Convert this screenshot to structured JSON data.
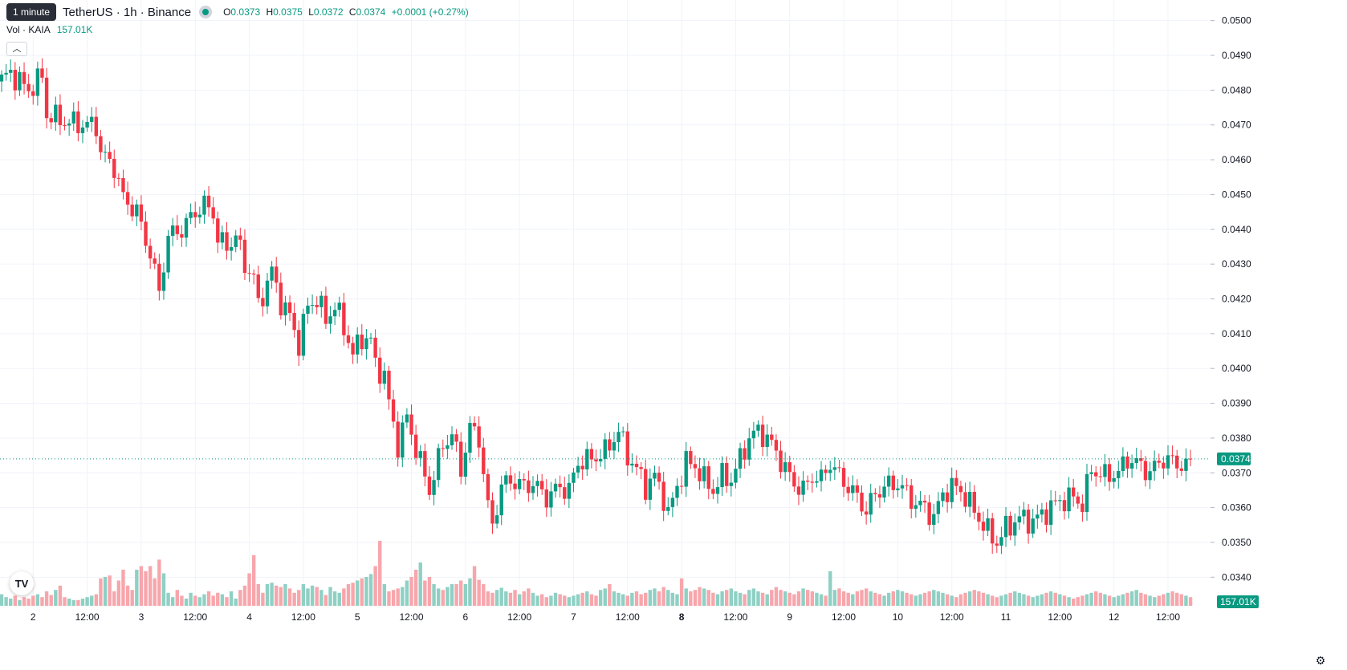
{
  "header": {
    "tooltip": "1 minute",
    "title": "TetherUS · 1h · Binance",
    "ohlc": [
      {
        "key": "O",
        "value": "0.0373"
      },
      {
        "key": "H",
        "value": "0.0375"
      },
      {
        "key": "L",
        "value": "0.0372"
      },
      {
        "key": "C",
        "value": "0.0374"
      }
    ],
    "change": "+0.0001 (+0.27%)"
  },
  "volume_legend": {
    "label": "Vol · KAIA",
    "value": "157.01K"
  },
  "logo_text": "TV",
  "colors": {
    "up": "#089981",
    "down": "#f23645",
    "vol_up": "#8fd0c4",
    "vol_down": "#f7a6ac",
    "grid": "#f0f3fa",
    "text": "#131722"
  },
  "chart_data": {
    "type": "candlestick",
    "interval": "1h",
    "ylim": [
      0.0335,
      0.0505
    ],
    "yticks": [
      "0.0500",
      "0.0490",
      "0.0480",
      "0.0470",
      "0.0460",
      "0.0450",
      "0.0440",
      "0.0430",
      "0.0420",
      "0.0410",
      "0.0400",
      "0.0390",
      "0.0380",
      "0.0370",
      "0.0360",
      "0.0350",
      "0.0340"
    ],
    "xticks": [
      {
        "label": "2",
        "bar": 7,
        "bold": false
      },
      {
        "label": "12:00",
        "bar": 19,
        "bold": false
      },
      {
        "label": "3",
        "bar": 31,
        "bold": false
      },
      {
        "label": "12:00",
        "bar": 43,
        "bold": false
      },
      {
        "label": "4",
        "bar": 55,
        "bold": false
      },
      {
        "label": "12:00",
        "bar": 67,
        "bold": false
      },
      {
        "label": "5",
        "bar": 79,
        "bold": false
      },
      {
        "label": "12:00",
        "bar": 91,
        "bold": false
      },
      {
        "label": "6",
        "bar": 103,
        "bold": false
      },
      {
        "label": "12:00",
        "bar": 115,
        "bold": false
      },
      {
        "label": "7",
        "bar": 127,
        "bold": false
      },
      {
        "label": "12:00",
        "bar": 139,
        "bold": false
      },
      {
        "label": "8",
        "bar": 151,
        "bold": true
      },
      {
        "label": "12:00",
        "bar": 163,
        "bold": false
      },
      {
        "label": "9",
        "bar": 175,
        "bold": false
      },
      {
        "label": "12:00",
        "bar": 187,
        "bold": false
      },
      {
        "label": "10",
        "bar": 199,
        "bold": false
      },
      {
        "label": "12:00",
        "bar": 211,
        "bold": false
      },
      {
        "label": "11",
        "bar": 223,
        "bold": false
      },
      {
        "label": "12:00",
        "bar": 235,
        "bold": false
      },
      {
        "label": "12",
        "bar": 247,
        "bold": false
      },
      {
        "label": "12:00",
        "bar": 259,
        "bold": false
      }
    ],
    "last_price": "0.0374",
    "last_volume": "157.01K",
    "keyframes": [
      [
        0,
        0.0483
      ],
      [
        2,
        0.0485
      ],
      [
        6,
        0.048
      ],
      [
        9,
        0.0484
      ],
      [
        10,
        0.0473
      ],
      [
        14,
        0.0471
      ],
      [
        18,
        0.047
      ],
      [
        21,
        0.047
      ],
      [
        22,
        0.0462
      ],
      [
        25,
        0.0458
      ],
      [
        27,
        0.0449
      ],
      [
        30,
        0.0445
      ],
      [
        33,
        0.0433
      ],
      [
        35,
        0.0422
      ],
      [
        37,
        0.0438
      ],
      [
        40,
        0.044
      ],
      [
        43,
        0.0445
      ],
      [
        45,
        0.0447
      ],
      [
        47,
        0.0445
      ],
      [
        48,
        0.0437
      ],
      [
        50,
        0.0435
      ],
      [
        52,
        0.0438
      ],
      [
        54,
        0.043
      ],
      [
        56,
        0.0426
      ],
      [
        57,
        0.0418
      ],
      [
        60,
        0.0428
      ],
      [
        62,
        0.0419
      ],
      [
        64,
        0.0415
      ],
      [
        66,
        0.0407
      ],
      [
        68,
        0.0418
      ],
      [
        70,
        0.042
      ],
      [
        72,
        0.0414
      ],
      [
        74,
        0.0418
      ],
      [
        76,
        0.0412
      ],
      [
        78,
        0.0404
      ],
      [
        80,
        0.0409
      ],
      [
        82,
        0.0408
      ],
      [
        83,
        0.0401
      ],
      [
        85,
        0.0398
      ],
      [
        86,
        0.039
      ],
      [
        88,
        0.0378
      ],
      [
        90,
        0.0386
      ],
      [
        92,
        0.0377
      ],
      [
        95,
        0.0365
      ],
      [
        98,
        0.0378
      ],
      [
        100,
        0.0381
      ],
      [
        102,
        0.0371
      ],
      [
        104,
        0.0383
      ],
      [
        106,
        0.038
      ],
      [
        108,
        0.036
      ],
      [
        109,
        0.0355
      ],
      [
        111,
        0.0366
      ],
      [
        113,
        0.0368
      ],
      [
        116,
        0.0366
      ],
      [
        118,
        0.0367
      ],
      [
        121,
        0.0363
      ],
      [
        124,
        0.0366
      ],
      [
        126,
        0.0365
      ],
      [
        128,
        0.0373
      ],
      [
        131,
        0.0374
      ],
      [
        134,
        0.0376
      ],
      [
        137,
        0.0382
      ],
      [
        139,
        0.0375
      ],
      [
        141,
        0.0371
      ],
      [
        143,
        0.0366
      ],
      [
        145,
        0.0369
      ],
      [
        147,
        0.0363
      ],
      [
        148,
        0.0358
      ],
      [
        150,
        0.0366
      ],
      [
        152,
        0.0373
      ],
      [
        154,
        0.0372
      ],
      [
        156,
        0.0368
      ],
      [
        158,
        0.0365
      ],
      [
        160,
        0.0369
      ],
      [
        162,
        0.0368
      ],
      [
        164,
        0.0374
      ],
      [
        166,
        0.038
      ],
      [
        168,
        0.0382
      ],
      [
        170,
        0.038
      ],
      [
        172,
        0.0376
      ],
      [
        174,
        0.0371
      ],
      [
        176,
        0.0367
      ],
      [
        178,
        0.0365
      ],
      [
        180,
        0.0369
      ],
      [
        182,
        0.0368
      ],
      [
        184,
        0.0373
      ],
      [
        186,
        0.0369
      ],
      [
        188,
        0.0366
      ],
      [
        190,
        0.0363
      ],
      [
        192,
        0.0359
      ],
      [
        194,
        0.0364
      ],
      [
        196,
        0.0366
      ],
      [
        199,
        0.0367
      ],
      [
        201,
        0.0364
      ],
      [
        203,
        0.0361
      ],
      [
        205,
        0.036
      ],
      [
        207,
        0.0357
      ],
      [
        209,
        0.0364
      ],
      [
        211,
        0.0366
      ],
      [
        213,
        0.0365
      ],
      [
        215,
        0.0361
      ],
      [
        217,
        0.0357
      ],
      [
        219,
        0.0353
      ],
      [
        221,
        0.035
      ],
      [
        223,
        0.0354
      ],
      [
        226,
        0.0357
      ],
      [
        229,
        0.0356
      ],
      [
        232,
        0.0359
      ],
      [
        235,
        0.0362
      ],
      [
        238,
        0.0363
      ],
      [
        240,
        0.0361
      ],
      [
        242,
        0.0371
      ],
      [
        245,
        0.0369
      ],
      [
        248,
        0.037
      ],
      [
        250,
        0.0374
      ],
      [
        253,
        0.0372
      ],
      [
        255,
        0.037
      ],
      [
        257,
        0.0373
      ],
      [
        258,
        0.0374
      ]
    ],
    "volumes": [
      16,
      12,
      10,
      14,
      8,
      12,
      10,
      14,
      16,
      12,
      20,
      15,
      22,
      28,
      12,
      10,
      8,
      8,
      10,
      12,
      14,
      16,
      38,
      40,
      42,
      20,
      35,
      50,
      28,
      22,
      50,
      55,
      48,
      55,
      38,
      64,
      45,
      18,
      12,
      22,
      14,
      10,
      18,
      14,
      12,
      16,
      20,
      14,
      18,
      16,
      12,
      20,
      10,
      22,
      28,
      45,
      70,
      30,
      18,
      30,
      32,
      28,
      26,
      30,
      24,
      18,
      22,
      30,
      24,
      28,
      26,
      22,
      15,
      26,
      20,
      18,
      24,
      30,
      32,
      35,
      38,
      40,
      44,
      55,
      90,
      30,
      20,
      22,
      24,
      26,
      35,
      40,
      50,
      60,
      35,
      40,
      30,
      24,
      22,
      26,
      30,
      30,
      35,
      30,
      38,
      55,
      36,
      30,
      20,
      18,
      22,
      25,
      20,
      18,
      22,
      16,
      20,
      24,
      18,
      14,
      16,
      12,
      14,
      18,
      16,
      14,
      12,
      14,
      16,
      18,
      20,
      16,
      14,
      22,
      24,
      30,
      20,
      18,
      16,
      14,
      18,
      20,
      16,
      18,
      22,
      24,
      20,
      26,
      22,
      18,
      16,
      38,
      24,
      20,
      22,
      26,
      24,
      22,
      18,
      16,
      20,
      22,
      24,
      20,
      18,
      16,
      22,
      24,
      20,
      18,
      16,
      22,
      26,
      22,
      20,
      18,
      16,
      20,
      24,
      22,
      20,
      18,
      16,
      14,
      48,
      22,
      24,
      20,
      18,
      16,
      20,
      22,
      24,
      20,
      18,
      16,
      14,
      18,
      20,
      22,
      20,
      18,
      16,
      14,
      16,
      18,
      20,
      22,
      20,
      18,
      16,
      14,
      12,
      16,
      18,
      20,
      22,
      20,
      18,
      16,
      14,
      12,
      14,
      16,
      18,
      20,
      18,
      16,
      14,
      12,
      14,
      16,
      18,
      20,
      18,
      16,
      14,
      12,
      10,
      12,
      14,
      16,
      18,
      20,
      18,
      16,
      14,
      12,
      14,
      16,
      18,
      20,
      22,
      18,
      16,
      14,
      12,
      14,
      16,
      18,
      20,
      18,
      16,
      14,
      12
    ]
  }
}
